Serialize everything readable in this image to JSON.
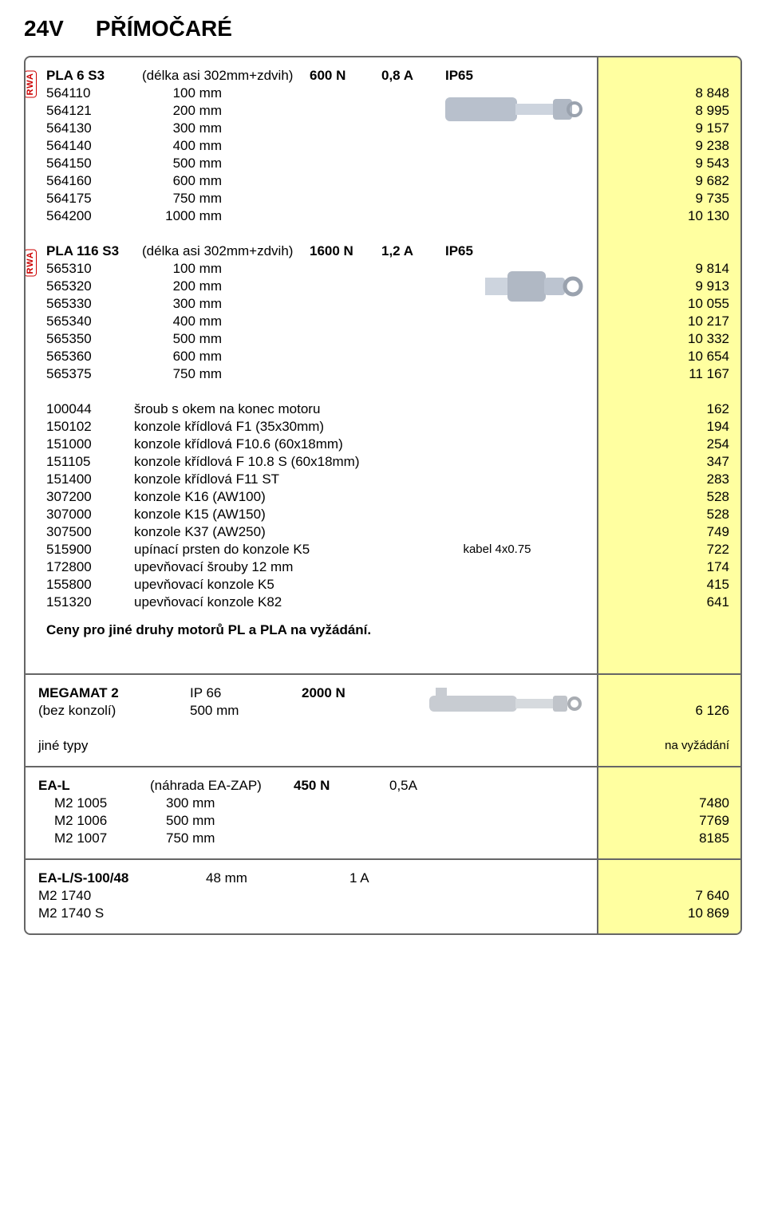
{
  "header": {
    "voltage": "24V",
    "title": "PŘÍMOČARÉ"
  },
  "badges": {
    "rwa": "RWA"
  },
  "pla6": {
    "name": "PLA 6 S3",
    "paren": "(délka asi 302mm+zdvih)",
    "force": "600 N",
    "amps": "0,8 A",
    "ip": "IP65",
    "rows": [
      {
        "code": "564110",
        "val": "100 mm",
        "price": "8 848"
      },
      {
        "code": "564121",
        "val": "200 mm",
        "price": "8 995"
      },
      {
        "code": "564130",
        "val": "300 mm",
        "price": "9 157"
      },
      {
        "code": "564140",
        "val": "400 mm",
        "price": "9 238"
      },
      {
        "code": "564150",
        "val": "500 mm",
        "price": "9 543"
      },
      {
        "code": "564160",
        "val": "600 mm",
        "price": "9 682"
      },
      {
        "code": "564175",
        "val": "750 mm",
        "price": "9 735"
      },
      {
        "code": "564200",
        "val": "1000 mm",
        "price": "10 130"
      }
    ]
  },
  "pla116": {
    "name": "PLA 116 S3",
    "paren": "(délka asi 302mm+zdvih)",
    "force": "1600 N",
    "amps": "1,2 A",
    "ip": "IP65",
    "rows": [
      {
        "code": "565310",
        "val": "100 mm",
        "price": "9 814"
      },
      {
        "code": "565320",
        "val": "200 mm",
        "price": "9 913"
      },
      {
        "code": "565330",
        "val": "300 mm",
        "price": "10 055"
      },
      {
        "code": "565340",
        "val": "400 mm",
        "price": "10 217"
      },
      {
        "code": "565350",
        "val": "500 mm",
        "price": "10 332"
      },
      {
        "code": "565360",
        "val": "600 mm",
        "price": "10 654"
      },
      {
        "code": "565375",
        "val": "750 mm",
        "price": "11 167"
      }
    ]
  },
  "accessories": [
    {
      "code": "100044",
      "desc": "šroub s okem na konec motoru",
      "extra": "",
      "price": "162"
    },
    {
      "code": "150102",
      "desc": "konzole křídlová F1 (35x30mm)",
      "extra": "",
      "price": "194"
    },
    {
      "code": "151000",
      "desc": "konzole křídlová F10.6 (60x18mm)",
      "extra": "",
      "price": "254"
    },
    {
      "code": "151105",
      "desc": "konzole křídlová F 10.8 S (60x18mm)",
      "extra": "",
      "price": "347"
    },
    {
      "code": "151400",
      "desc": "konzole křídlová F11 ST",
      "extra": "",
      "price": "283"
    },
    {
      "code": "307200",
      "desc": "konzole K16 (AW100)",
      "extra": "",
      "price": "528"
    },
    {
      "code": "307000",
      "desc": "konzole K15 (AW150)",
      "extra": "",
      "price": "528"
    },
    {
      "code": "307500",
      "desc": "konzole K37 (AW250)",
      "extra": "",
      "price": "749"
    },
    {
      "code": "515900",
      "desc": "upínací prsten do konzole K5",
      "extra": "kabel 4x0.75",
      "price": "722"
    },
    {
      "code": "172800",
      "desc": "upevňovací šrouby 12 mm",
      "extra": "",
      "price": "174"
    },
    {
      "code": "155800",
      "desc": "upevňovací konzole K5",
      "extra": "",
      "price": "415"
    },
    {
      "code": "151320",
      "desc": "upevňovací konzole K82",
      "extra": "",
      "price": "641"
    }
  ],
  "note": "Ceny pro jiné druhy motorů PL a PLA na vyžádání.",
  "megamat": {
    "name": "MEGAMAT 2",
    "ip": "IP 66",
    "force": "2000 N",
    "sub_l": "(bez konzolí)",
    "sub_v": "500 mm",
    "price": "6 126",
    "other_l": "jiné typy",
    "other_r": "na vyžádání"
  },
  "eal": {
    "name": "EA-L",
    "paren": "(náhrada EA-ZAP)",
    "force": "450 N",
    "amps": "0,5A",
    "rows": [
      {
        "code": "M2 1005",
        "val": "300 mm",
        "price": "7480"
      },
      {
        "code": "M2 1006",
        "val": "500 mm",
        "price": "7769"
      },
      {
        "code": "M2 1007",
        "val": "750 mm",
        "price": "8185"
      }
    ]
  },
  "eals": {
    "name": "EA-L/S-100/48",
    "val": "48 mm",
    "amps": "1 A",
    "rows": [
      {
        "code": "M2 1740",
        "price": "7 640"
      },
      {
        "code": "M2 1740 S",
        "price": "10 869"
      }
    ]
  }
}
